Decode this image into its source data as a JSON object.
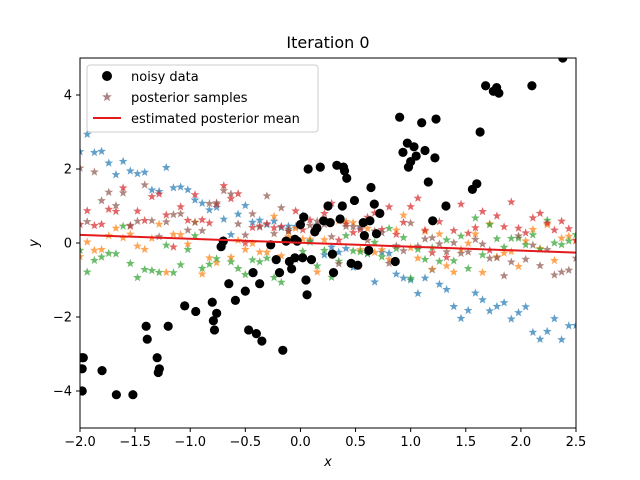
{
  "chart_data": {
    "type": "scatter",
    "title": "Iteration 0",
    "xlabel": "x",
    "ylabel": "y",
    "xlim": [
      -2.0,
      2.5
    ],
    "ylim": [
      -5.0,
      5.0
    ],
    "xticks": [
      -2.0,
      -1.5,
      -1.0,
      -0.5,
      0.0,
      0.5,
      1.0,
      1.5,
      2.0,
      2.5
    ],
    "xtick_labels": [
      "−2.0",
      "−1.5",
      "−1.0",
      "−0.5",
      "0.0",
      "0.5",
      "1.0",
      "1.5",
      "2.0",
      "2.5"
    ],
    "yticks": [
      -4,
      -2,
      0,
      2,
      4
    ],
    "ytick_labels": [
      "−4",
      "−2",
      "0",
      "2",
      "4"
    ],
    "legend": {
      "placement": "upper-left",
      "entries": [
        {
          "label": "noisy data",
          "marker": "circle",
          "color": "#000000"
        },
        {
          "label": "posterior samples",
          "marker": "star",
          "color": "#8c5a5a"
        },
        {
          "label": "estimated posterior mean",
          "marker": "line",
          "color": "#e31a1c"
        }
      ]
    },
    "noisy_data": {
      "x": [
        -1.98,
        -1.98,
        -1.98,
        -1.97,
        -1.8,
        -1.67,
        -1.52,
        -1.4,
        -1.39,
        -1.3,
        -1.28,
        -1.29,
        -1.2,
        -1.05,
        -0.95,
        -0.8,
        -0.79,
        -0.78,
        -0.76,
        -0.72,
        -0.7,
        -0.65,
        -0.59,
        -0.5,
        -0.47,
        -0.43,
        -0.4,
        -0.37,
        -0.35,
        -0.27,
        -0.22,
        -0.19,
        -0.16,
        -0.13,
        -0.1,
        -0.08,
        -0.05,
        -0.05,
        -0.03,
        0.0,
        0.02,
        0.03,
        0.05,
        0.06,
        0.07,
        0.1,
        0.13,
        0.15,
        0.18,
        0.21,
        0.25,
        0.27,
        0.29,
        0.3,
        0.33,
        0.36,
        0.38,
        0.39,
        0.4,
        0.42,
        0.46,
        0.49,
        0.52,
        0.57,
        0.58,
        0.62,
        0.63,
        0.64,
        0.67,
        0.69,
        0.72,
        0.86,
        0.9,
        0.93,
        0.97,
        0.98,
        1.0,
        1.03,
        1.05,
        1.1,
        1.13,
        1.16,
        1.2,
        1.22,
        1.23,
        1.32,
        1.56,
        1.6,
        1.63,
        1.68,
        1.75,
        1.78,
        1.8,
        2.1,
        2.38
      ],
      "y": [
        -3.1,
        -3.4,
        -4.0,
        -3.1,
        -3.45,
        -4.1,
        -4.1,
        -2.25,
        -2.6,
        -3.1,
        -3.4,
        -3.5,
        -2.25,
        -1.7,
        -1.85,
        -1.6,
        -2.1,
        -2.35,
        -1.9,
        -0.1,
        0.05,
        -1.1,
        -1.55,
        -1.3,
        -2.35,
        -0.8,
        -2.45,
        -1.1,
        -2.65,
        -0.05,
        -0.45,
        -0.8,
        -2.9,
        0.05,
        -0.5,
        -0.7,
        0.1,
        -0.4,
        0.05,
        0.5,
        -0.4,
        0.7,
        -1.0,
        -1.4,
        2.0,
        -0.45,
        0.3,
        0.4,
        2.05,
        0.6,
        1.0,
        0.55,
        -0.3,
        -0.8,
        2.1,
        0.65,
        1.0,
        2.05,
        1.95,
        1.75,
        -0.55,
        1.15,
        -0.6,
        0.55,
        0.2,
        -0.2,
        0.6,
        1.5,
        1.05,
        0.25,
        0.8,
        -0.5,
        3.4,
        2.45,
        2.7,
        2.05,
        2.2,
        2.6,
        2.35,
        3.25,
        2.5,
        1.65,
        0.6,
        2.3,
        3.35,
        1.0,
        1.45,
        1.6,
        3.0,
        4.25,
        4.1,
        4.2,
        4.05,
        4.25,
        5.0
      ]
    },
    "posterior_mean": {
      "x": [
        -2.0,
        2.5
      ],
      "y": [
        0.22,
        -0.26
      ]
    },
    "posterior_samples": [
      {
        "color": "#1f77b4",
        "x_start": -2.0,
        "x_end": 2.5,
        "count": 70,
        "slope": -1.1,
        "intercept": 0.2,
        "noise": 0.45
      },
      {
        "color": "#ff7f0e",
        "x_start": -2.0,
        "x_end": 2.5,
        "count": 70,
        "slope": 0.05,
        "intercept": -0.05,
        "noise": 0.45
      },
      {
        "color": "#2ca02c",
        "x_start": -2.0,
        "x_end": 2.5,
        "count": 70,
        "slope": 0.1,
        "intercept": -0.35,
        "noise": 0.45
      },
      {
        "color": "#d62728",
        "x_start": -2.0,
        "x_end": 2.5,
        "count": 70,
        "slope": -0.05,
        "intercept": 0.7,
        "noise": 0.45
      },
      {
        "color": "#8c564b",
        "x_start": -2.0,
        "x_end": 2.5,
        "count": 70,
        "slope": -0.4,
        "intercept": 0.4,
        "noise": 0.45
      }
    ]
  }
}
